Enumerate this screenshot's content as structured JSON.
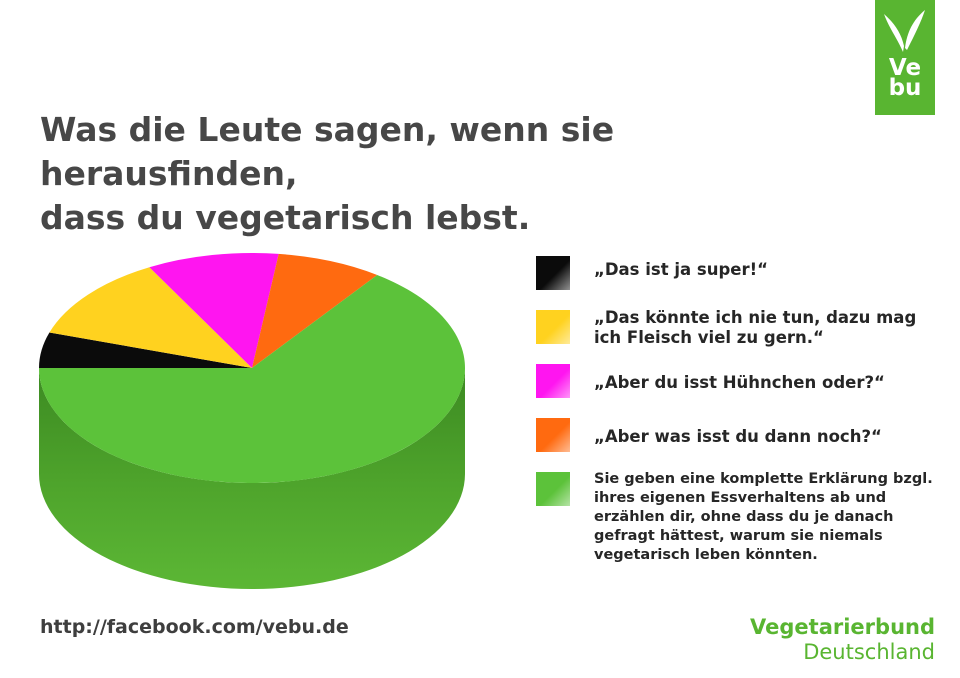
{
  "logo": {
    "line1": "Ve",
    "line2": "bu"
  },
  "title": {
    "line1": "Was die Leute sagen, wenn sie herausfinden,",
    "line2": "dass du vegetarisch lebst."
  },
  "footer": {
    "url": "http://facebook.com/vebu.de",
    "org_line1": "Vegetarierbund",
    "org_line2": "Deutschland"
  },
  "colors": {
    "brand_green": "#59b531",
    "title_text": "#474747"
  },
  "chart_data": {
    "type": "pie",
    "title": "Was die Leute sagen, wenn sie herausfinden, dass du vegetarisch lebst.",
    "legend_position": "right",
    "start_angle_deg": 180,
    "slices": [
      {
        "label": "„Das ist ja super!“",
        "value": 5,
        "color": "#0b0b0b"
      },
      {
        "label": "„Das könnte ich nie tun, dazu mag ich Fleisch viel zu gern.“",
        "value": 12,
        "color": "#ffd21f"
      },
      {
        "label": "„Aber du isst Hühnchen oder?“",
        "value": 10,
        "color": "#ff15f0"
      },
      {
        "label": "„Aber was isst du dann noch?“",
        "value": 8,
        "color": "#ff6a10"
      },
      {
        "label": "Sie geben eine komplette Erklärung bzgl. ihres eigenen Essverhaltens ab und erzählen dir, ohne dass du je danach gefragt hättest, warum sie niemals vegetarisch leben könnten.",
        "value": 65,
        "color": "#5cc23a"
      }
    ]
  }
}
